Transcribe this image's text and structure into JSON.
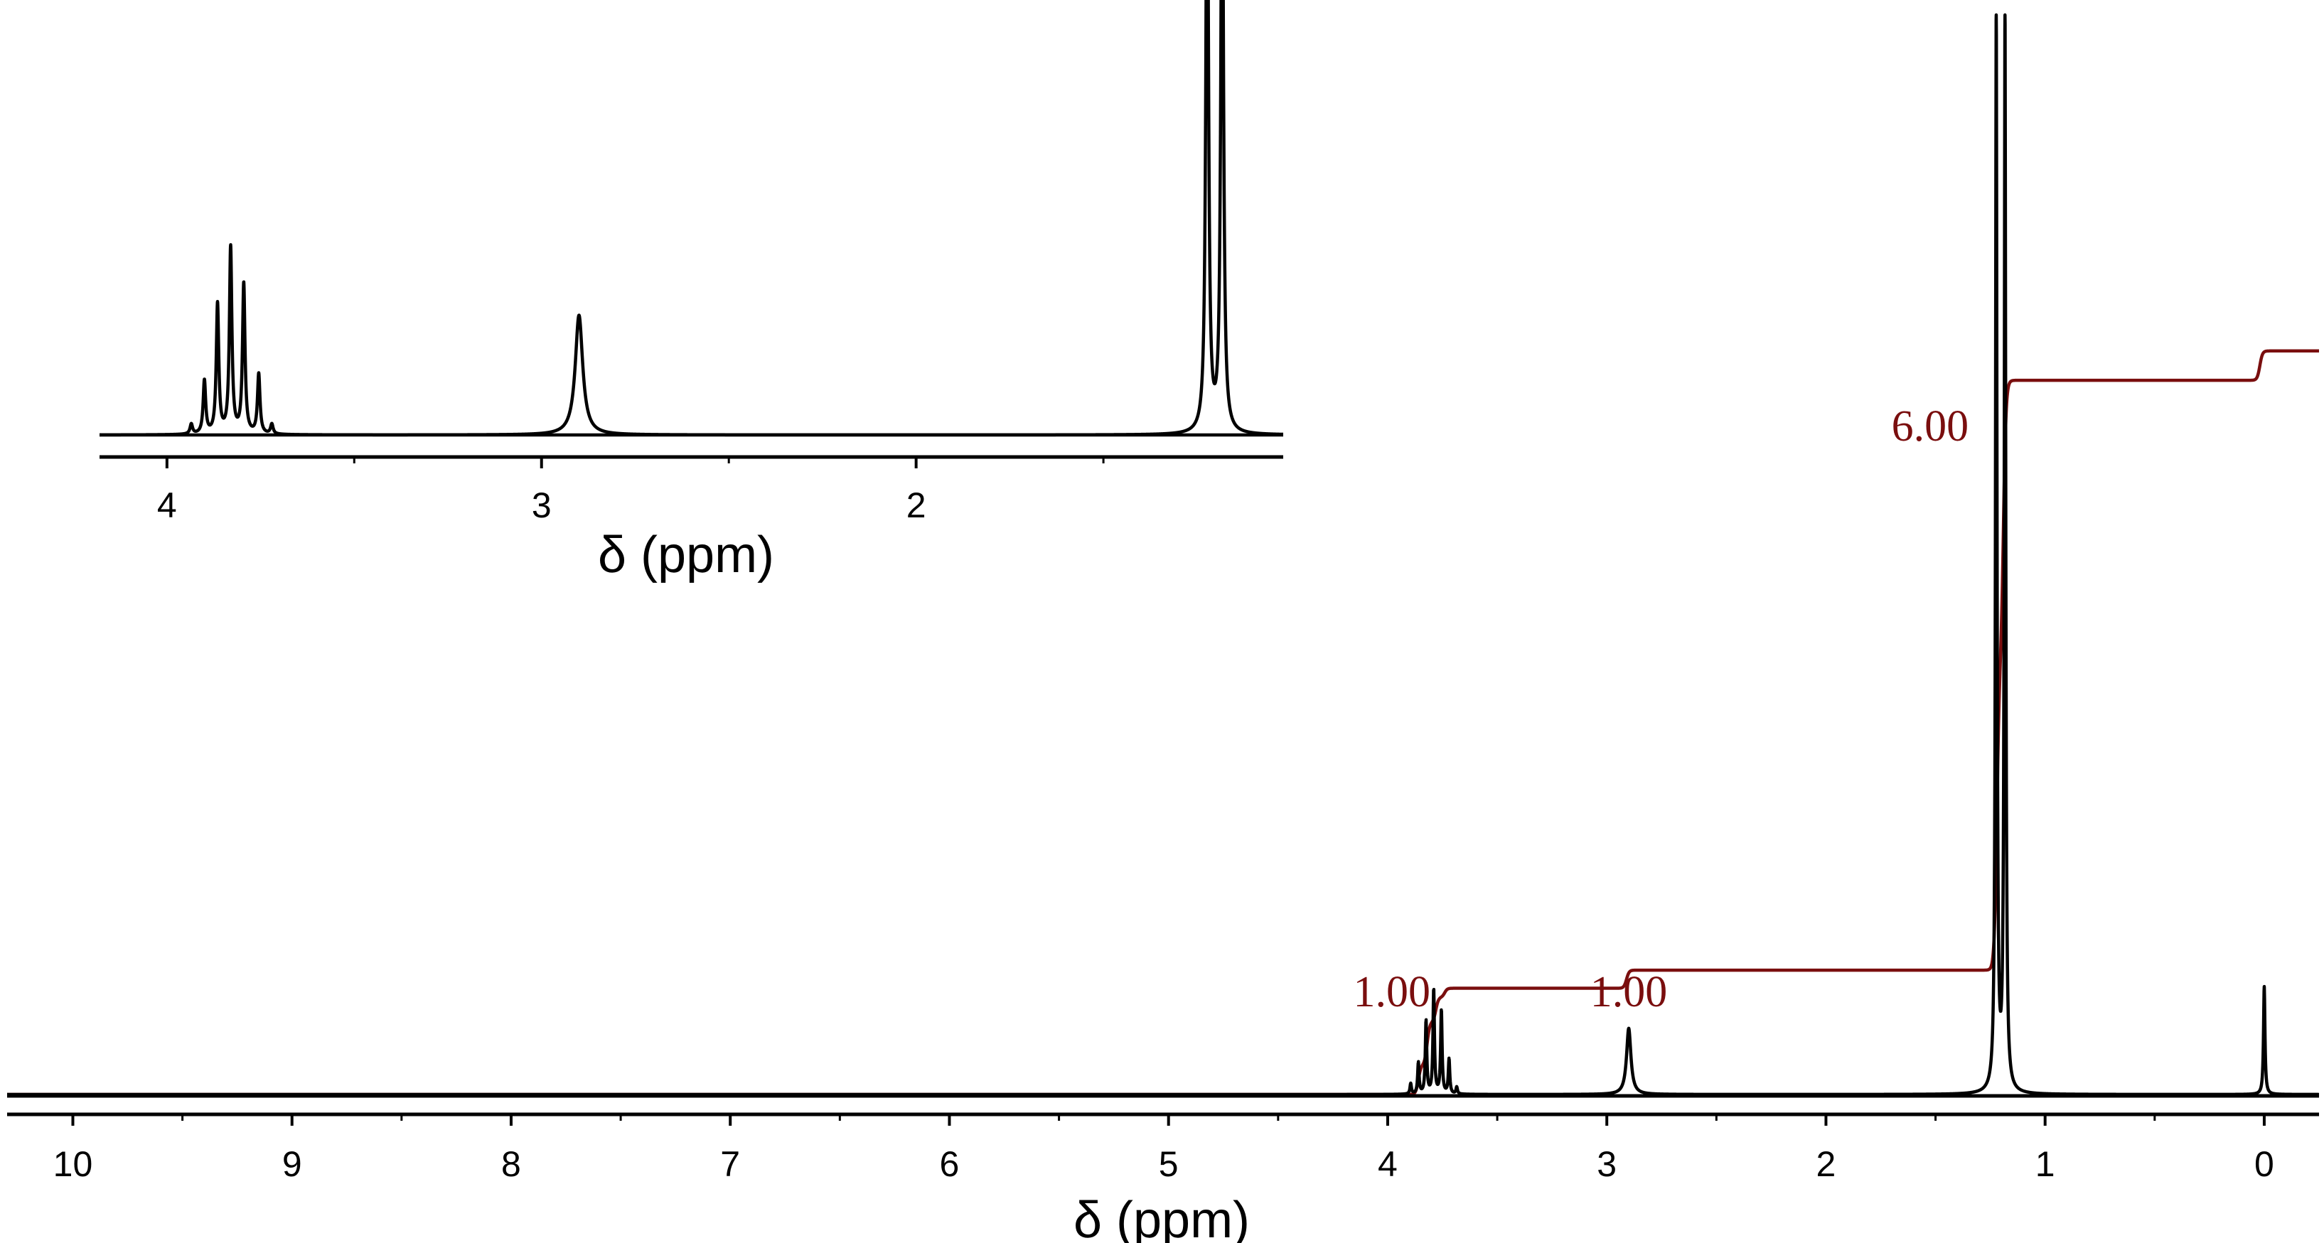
{
  "chart_data": [
    {
      "type": "line",
      "role": "main spectrum",
      "xlabel": "δ (ppm)",
      "xlim": [
        10.3,
        -0.25
      ],
      "x_reversed": true,
      "xticks": [
        "10",
        "9",
        "8",
        "7",
        "6",
        "5",
        "4",
        "3",
        "2",
        "1",
        "0"
      ],
      "grid": false,
      "colors": {
        "spectrum": "#000000",
        "integral": "#7a0e0e"
      },
      "series": [
        {
          "kind": "spectrum",
          "peaks": [
            {
              "center": 3.895,
              "intensity": 0.03,
              "width": 0.004
            },
            {
              "center": 3.86,
              "intensity": 0.09,
              "width": 0.004
            },
            {
              "center": 3.825,
              "intensity": 0.21,
              "width": 0.004
            },
            {
              "center": 3.79,
              "intensity": 0.3,
              "width": 0.004
            },
            {
              "center": 3.755,
              "intensity": 0.24,
              "width": 0.004
            },
            {
              "center": 3.72,
              "intensity": 0.1,
              "width": 0.004
            },
            {
              "center": 3.685,
              "intensity": 0.02,
              "width": 0.004
            },
            {
              "center": 2.9,
              "intensity": 0.19,
              "width": 0.012
            },
            {
              "center": 1.223,
              "intensity": 3.1,
              "width": 0.004
            },
            {
              "center": 1.183,
              "intensity": 3.1,
              "width": 0.004
            },
            {
              "center": 0.0,
              "intensity": 0.31,
              "width": 0.004
            }
          ]
        },
        {
          "kind": "integral",
          "steps": [
            {
              "center": 3.86,
              "rise": 0.13
            },
            {
              "center": 3.82,
              "rise": 0.19
            },
            {
              "center": 3.78,
              "rise": 0.11
            },
            {
              "center": 3.74,
              "rise": 0.04
            },
            {
              "center": 2.91,
              "rise": 0.08
            },
            {
              "center": 1.22,
              "rise": 1.35
            },
            {
              "center": 1.19,
              "rise": 1.26
            },
            {
              "center": 0.02,
              "rise": 0.13
            }
          ]
        }
      ],
      "annotations": [
        {
          "text": "1.00",
          "x": 3.78
        },
        {
          "text": "1.00",
          "x": 2.9
        },
        {
          "text": "6.00",
          "x": 1.22
        }
      ]
    },
    {
      "type": "line",
      "role": "inset spectrum",
      "xlabel": "δ (ppm)",
      "xlim": [
        4.18,
        1.02
      ],
      "x_reversed": true,
      "xticks": [
        "4",
        "3",
        "2"
      ],
      "grid": false,
      "series": [
        {
          "kind": "spectrum",
          "peaks": [
            {
              "center": 3.935,
              "intensity": 0.06,
              "width": 0.004
            },
            {
              "center": 3.9,
              "intensity": 0.32,
              "width": 0.004
            },
            {
              "center": 3.865,
              "intensity": 0.78,
              "width": 0.004
            },
            {
              "center": 3.83,
              "intensity": 1.12,
              "width": 0.004
            },
            {
              "center": 3.795,
              "intensity": 0.9,
              "width": 0.004
            },
            {
              "center": 3.755,
              "intensity": 0.36,
              "width": 0.004
            },
            {
              "center": 3.72,
              "intensity": 0.06,
              "width": 0.004
            },
            {
              "center": 2.9,
              "intensity": 0.72,
              "width": 0.012
            },
            {
              "center": 1.223,
              "intensity": 4.0,
              "width": 0.004
            },
            {
              "center": 1.183,
              "intensity": 4.0,
              "width": 0.004
            }
          ]
        }
      ]
    }
  ]
}
